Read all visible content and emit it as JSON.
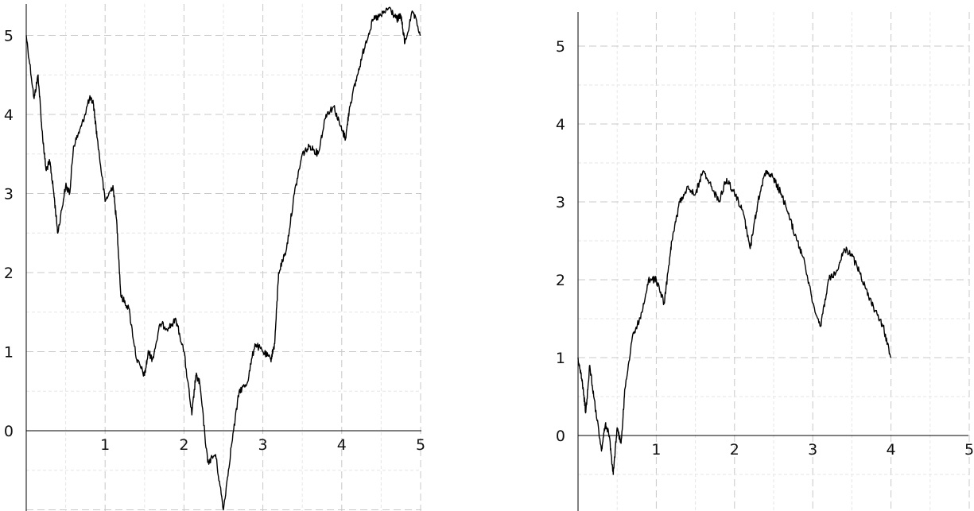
{
  "chart_data": [
    {
      "type": "line",
      "title": "",
      "xlabel": "",
      "ylabel": "",
      "xlim": [
        0,
        5
      ],
      "ylim": [
        -1,
        5.4
      ],
      "x_ticks": [
        "1",
        "2",
        "3",
        "4",
        "5"
      ],
      "y_ticks": [
        "0",
        "1",
        "2",
        "3",
        "4",
        "5"
      ],
      "grid": true,
      "series": [
        {
          "color": "#000000",
          "x": [
            0,
            0.1,
            0.15,
            0.2,
            0.25,
            0.3,
            0.35,
            0.4,
            0.5,
            0.55,
            0.6,
            0.7,
            0.8,
            0.85,
            0.9,
            1.0,
            1.1,
            1.15,
            1.2,
            1.3,
            1.4,
            1.5,
            1.55,
            1.6,
            1.7,
            1.8,
            1.9,
            2.0,
            2.1,
            2.15,
            2.2,
            2.3,
            2.4,
            2.5,
            2.6,
            2.7,
            2.8,
            2.9,
            3.0,
            3.1,
            3.15,
            3.2,
            3.3,
            3.4,
            3.5,
            3.6,
            3.7,
            3.8,
            3.9,
            4.0,
            4.05,
            4.1,
            4.2,
            4.3,
            4.4,
            4.5,
            4.6,
            4.7,
            4.75,
            4.8,
            4.9,
            5.0
          ],
          "y": [
            5.0,
            4.2,
            4.5,
            3.8,
            3.3,
            3.4,
            3.0,
            2.5,
            3.1,
            3.0,
            3.6,
            3.85,
            4.2,
            4.15,
            3.7,
            2.9,
            3.1,
            2.6,
            1.7,
            1.55,
            0.9,
            0.7,
            1.0,
            0.9,
            1.35,
            1.3,
            1.4,
            1.0,
            0.2,
            0.7,
            0.6,
            -0.4,
            -0.3,
            -1.0,
            -0.2,
            0.5,
            0.6,
            1.1,
            1.0,
            0.9,
            1.1,
            2.0,
            2.3,
            3.0,
            3.5,
            3.6,
            3.5,
            4.0,
            4.1,
            3.8,
            3.7,
            4.1,
            4.5,
            4.9,
            5.2,
            5.25,
            5.35,
            5.2,
            5.25,
            4.9,
            5.3,
            5.0
          ]
        }
      ]
    },
    {
      "type": "line",
      "title": "",
      "xlabel": "",
      "ylabel": "",
      "xlim": [
        0,
        5
      ],
      "ylim": [
        -1,
        5.4
      ],
      "x_ticks": [
        "1",
        "2",
        "3",
        "4",
        "5"
      ],
      "y_ticks": [
        "0",
        "1",
        "2",
        "3",
        "4",
        "5"
      ],
      "grid": true,
      "series": [
        {
          "color": "#000000",
          "x": [
            0,
            0.05,
            0.1,
            0.15,
            0.2,
            0.3,
            0.35,
            0.4,
            0.45,
            0.5,
            0.55,
            0.6,
            0.7,
            0.8,
            0.9,
            1.0,
            1.1,
            1.15,
            1.2,
            1.3,
            1.4,
            1.5,
            1.6,
            1.7,
            1.8,
            1.9,
            2.0,
            2.1,
            2.2,
            2.3,
            2.4,
            2.5,
            2.6,
            2.7,
            2.8,
            2.9,
            3.0,
            3.1,
            3.2,
            3.3,
            3.4,
            3.5,
            3.6,
            3.7,
            3.8,
            3.9,
            4.0
          ],
          "y": [
            1.0,
            0.7,
            0.3,
            0.9,
            0.5,
            -0.2,
            0.15,
            0.0,
            -0.5,
            0.1,
            -0.1,
            0.6,
            1.3,
            1.5,
            2.0,
            2.0,
            1.7,
            2.1,
            2.5,
            3.0,
            3.2,
            3.1,
            3.4,
            3.2,
            3.0,
            3.3,
            3.1,
            2.9,
            2.4,
            3.0,
            3.4,
            3.3,
            3.1,
            2.8,
            2.5,
            2.2,
            1.7,
            1.4,
            2.0,
            2.1,
            2.4,
            2.3,
            2.1,
            1.8,
            1.6,
            1.4,
            1.0
          ]
        }
      ]
    }
  ]
}
